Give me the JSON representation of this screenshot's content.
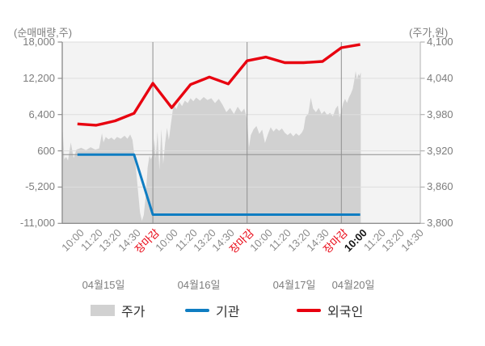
{
  "chart_data": {
    "type": "mixed",
    "title": "",
    "left_axis": {
      "title": "(순매매량,주)",
      "ticks": [
        "18,000",
        "12,200",
        "6,400",
        "600",
        "-5,200",
        "-11,000"
      ],
      "values": [
        18000,
        12200,
        6400,
        600,
        -5200,
        -11000
      ],
      "range": [
        -11000,
        18000
      ],
      "zero_line": 0
    },
    "right_axis": {
      "title": "(주가,원)",
      "ticks": [
        "4,100",
        "4,040",
        "3,980",
        "3,920",
        "3,860",
        "3,800"
      ],
      "values": [
        4100,
        4040,
        3980,
        3920,
        3860,
        3800
      ],
      "range": [
        3800,
        4100
      ]
    },
    "x_ticks": [
      {
        "label": "10:00",
        "style": "time"
      },
      {
        "label": "11:20",
        "style": "time"
      },
      {
        "label": "13:20",
        "style": "time"
      },
      {
        "label": "14:30",
        "style": "time"
      },
      {
        "label": "장마감",
        "style": "close"
      },
      {
        "label": "10:00",
        "style": "time"
      },
      {
        "label": "11:20",
        "style": "time"
      },
      {
        "label": "13:20",
        "style": "time"
      },
      {
        "label": "14:30",
        "style": "time"
      },
      {
        "label": "장마감",
        "style": "close"
      },
      {
        "label": "10:00",
        "style": "time"
      },
      {
        "label": "11:20",
        "style": "time"
      },
      {
        "label": "13:20",
        "style": "time"
      },
      {
        "label": "14:30",
        "style": "time"
      },
      {
        "label": "장마감",
        "style": "close"
      },
      {
        "label": "10:00",
        "style": "current"
      },
      {
        "label": "11:20",
        "style": "time"
      },
      {
        "label": "13:20",
        "style": "time"
      },
      {
        "label": "14:30",
        "style": "time"
      }
    ],
    "dates": [
      "04월15일",
      "04월16일",
      "04월17일",
      "04월20일"
    ],
    "day_separator_tick_indexes": [
      4,
      9,
      14
    ],
    "series": [
      {
        "name": "주가",
        "type": "area",
        "axis": "right",
        "color": "#d1d1d1",
        "points": [
          [
            -0.78,
            3954
          ],
          [
            -0.7,
            3906
          ],
          [
            -0.6,
            3910
          ],
          [
            -0.5,
            3904
          ],
          [
            -0.35,
            3934
          ],
          [
            -0.2,
            3908
          ],
          [
            -0.05,
            3922
          ],
          [
            0.2,
            3925
          ],
          [
            0.45,
            3921
          ],
          [
            0.7,
            3926
          ],
          [
            0.95,
            3922
          ],
          [
            1.15,
            3924
          ],
          [
            1.3,
            3949
          ],
          [
            1.38,
            3934
          ],
          [
            1.5,
            3943
          ],
          [
            1.65,
            3939
          ],
          [
            1.8,
            3942
          ],
          [
            1.95,
            3938
          ],
          [
            2.1,
            3943
          ],
          [
            2.3,
            3940
          ],
          [
            2.5,
            3945
          ],
          [
            2.65,
            3940
          ],
          [
            2.8,
            3947
          ],
          [
            2.92,
            3938
          ],
          [
            3.0,
            3918
          ],
          [
            3.1,
            3892
          ],
          [
            3.2,
            3858
          ],
          [
            3.32,
            3818
          ],
          [
            3.42,
            3804
          ],
          [
            3.52,
            3814
          ],
          [
            3.62,
            3845
          ],
          [
            3.72,
            3892
          ],
          [
            3.82,
            3912
          ],
          [
            3.9,
            3906
          ],
          [
            4.0,
            3914
          ],
          [
            4.08,
            3940
          ],
          [
            4.15,
            3908
          ],
          [
            4.25,
            3952
          ],
          [
            4.35,
            3888
          ],
          [
            4.45,
            3956
          ],
          [
            4.55,
            3898
          ],
          [
            4.65,
            3932
          ],
          [
            4.75,
            3958
          ],
          [
            4.85,
            3938
          ],
          [
            4.95,
            3962
          ],
          [
            5.1,
            3997
          ],
          [
            5.25,
            3989
          ],
          [
            5.4,
            4001
          ],
          [
            5.55,
            3994
          ],
          [
            5.7,
            4003
          ],
          [
            5.85,
            3999
          ],
          [
            6.0,
            4007
          ],
          [
            6.15,
            4002
          ],
          [
            6.3,
            4008
          ],
          [
            6.5,
            4003
          ],
          [
            6.7,
            4009
          ],
          [
            6.9,
            4004
          ],
          [
            7.1,
            4007
          ],
          [
            7.3,
            3999
          ],
          [
            7.5,
            4006
          ],
          [
            7.7,
            3996
          ],
          [
            7.9,
            3984
          ],
          [
            8.1,
            3991
          ],
          [
            8.3,
            3981
          ],
          [
            8.5,
            3993
          ],
          [
            8.7,
            3984
          ],
          [
            8.85,
            3990
          ],
          [
            9.0,
            3972
          ],
          [
            9.1,
            3926
          ],
          [
            9.2,
            3946
          ],
          [
            9.35,
            3956
          ],
          [
            9.5,
            3961
          ],
          [
            9.65,
            3948
          ],
          [
            9.8,
            3955
          ],
          [
            9.95,
            3933
          ],
          [
            10.1,
            3947
          ],
          [
            10.25,
            3959
          ],
          [
            10.4,
            3952
          ],
          [
            10.55,
            3957
          ],
          [
            10.7,
            3953
          ],
          [
            10.85,
            3957
          ],
          [
            11.0,
            3950
          ],
          [
            11.15,
            3946
          ],
          [
            11.3,
            3950
          ],
          [
            11.45,
            3944
          ],
          [
            11.6,
            3949
          ],
          [
            11.75,
            3945
          ],
          [
            11.9,
            3950
          ],
          [
            12.0,
            3956
          ],
          [
            12.1,
            3976
          ],
          [
            12.25,
            3982
          ],
          [
            12.38,
            4008
          ],
          [
            12.5,
            3990
          ],
          [
            12.65,
            3984
          ],
          [
            12.8,
            3991
          ],
          [
            12.95,
            3981
          ],
          [
            13.1,
            3986
          ],
          [
            13.25,
            3979
          ],
          [
            13.4,
            3983
          ],
          [
            13.55,
            3977
          ],
          [
            13.7,
            3990
          ],
          [
            13.82,
            3995
          ],
          [
            13.9,
            3975
          ],
          [
            14.0,
            3985
          ],
          [
            14.1,
            3999
          ],
          [
            14.2,
            4006
          ],
          [
            14.3,
            3999
          ],
          [
            14.4,
            4008
          ],
          [
            14.5,
            4014
          ],
          [
            14.6,
            4022
          ],
          [
            14.68,
            4035
          ],
          [
            14.76,
            4052
          ],
          [
            14.83,
            4038
          ],
          [
            14.9,
            4047
          ],
          [
            14.96,
            4044
          ],
          [
            15.03,
            4050
          ]
        ]
      },
      {
        "name": "기관",
        "type": "line",
        "axis": "left",
        "color": "#0f7dc2",
        "values_per_tick": [
          0,
          0,
          0,
          0,
          -9600,
          -9600,
          -9600,
          -9600,
          -9600,
          -9600,
          -9600,
          -9600,
          -9600,
          -9600,
          -9600,
          -9600,
          null,
          null,
          null
        ]
      },
      {
        "name": "외국인",
        "type": "line",
        "axis": "left",
        "color": "#e8000f",
        "values_per_tick": [
          4900,
          4700,
          5400,
          6600,
          11400,
          7500,
          11200,
          12400,
          11300,
          15000,
          15600,
          14700,
          14700,
          14900,
          17100,
          17600,
          null,
          null,
          null
        ]
      }
    ],
    "legend_position": "bottom",
    "grid": true
  },
  "legend": [
    {
      "label": "주가",
      "type": "area",
      "color": "#d1d1d1"
    },
    {
      "label": "기관",
      "type": "line",
      "color": "#0f7dc2"
    },
    {
      "label": "외국인",
      "type": "line",
      "color": "#e8000f"
    }
  ],
  "colors": {
    "plot_background": "#f3f3f3",
    "grid_light": "#dedede",
    "grid_dark": "#8f8f8f",
    "axis": "#8f8f8f",
    "price_area": "#d1d1d1",
    "institutions_line": "#0f7dc2",
    "foreigners_line": "#e8000f"
  }
}
